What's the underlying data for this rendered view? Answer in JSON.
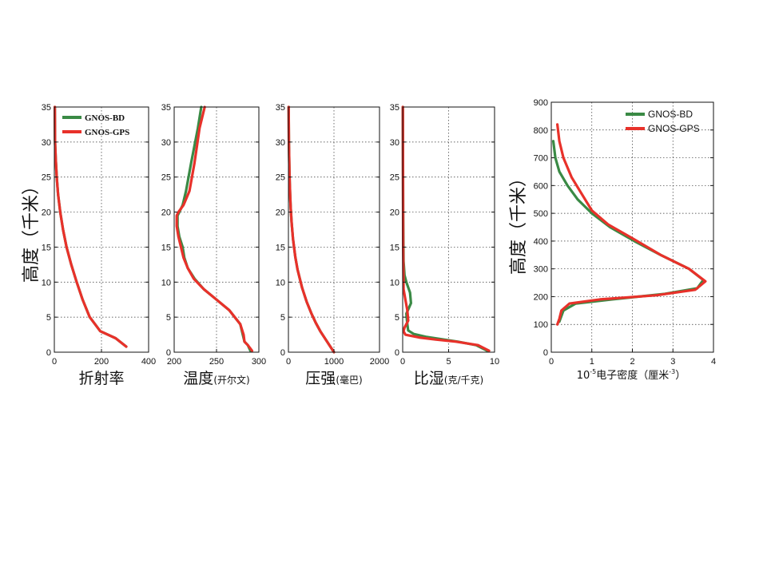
{
  "colors": {
    "GNOS-BD": "#3a8a45",
    "GNOS-GPS": "#e8312a"
  },
  "left_ylabel": {
    "main": "高度",
    "paren_open": "（",
    "unit": "千米",
    "paren_close": "）"
  },
  "right_ylabel": {
    "main": "高度",
    "paren_open": "（",
    "unit": "千米",
    "paren_close": "）"
  },
  "chart_data": [
    {
      "id": "refractivity",
      "type": "line",
      "xlabel": "折射率",
      "xlabel_unit": "",
      "xlim": [
        0,
        400
      ],
      "ylim": [
        0,
        35
      ],
      "xticks": [
        0,
        200,
        400
      ],
      "yticks": [
        0,
        5,
        10,
        15,
        20,
        25,
        30,
        35
      ],
      "grid": true,
      "legend": {
        "position": "top-left",
        "entries": [
          "GNOS-BD",
          "GNOS-GPS"
        ]
      },
      "series": [
        {
          "name": "GNOS-BD",
          "x": [
            305,
            260,
            195,
            150,
            120,
            95,
            72,
            52,
            37,
            25,
            16,
            10,
            6,
            3,
            2
          ],
          "y": [
            0.8,
            2,
            3,
            5,
            7.5,
            10,
            12.5,
            15,
            17.5,
            20,
            22.5,
            25,
            27.5,
            30,
            35
          ]
        },
        {
          "name": "GNOS-GPS",
          "x": [
            305,
            260,
            195,
            150,
            120,
            95,
            72,
            52,
            37,
            25,
            16,
            10,
            6,
            3,
            2
          ],
          "y": [
            0.8,
            2,
            3,
            5,
            7.5,
            10,
            12.5,
            15,
            17.5,
            20,
            22.5,
            25,
            27.5,
            30,
            35
          ]
        }
      ]
    },
    {
      "id": "temperature",
      "type": "line",
      "xlabel": "温度",
      "xlabel_unit": "(开尔文)",
      "xlim": [
        200,
        300
      ],
      "ylim": [
        0,
        35
      ],
      "xticks": [
        200,
        250,
        300
      ],
      "yticks": [
        0,
        5,
        10,
        15,
        20,
        25,
        30,
        35
      ],
      "grid": true,
      "series": [
        {
          "name": "GNOS-BD",
          "x": [
            290,
            287,
            283,
            281,
            278,
            265,
            250,
            235,
            224,
            216,
            212,
            210,
            206,
            204,
            204,
            206,
            210,
            214,
            220,
            228,
            232
          ],
          "y": [
            0.2,
            1,
            1.5,
            2.5,
            4,
            6,
            7.5,
            9,
            10.5,
            12,
            13.5,
            15,
            16.5,
            18,
            19.5,
            20,
            21,
            23,
            27,
            32,
            35
          ]
        },
        {
          "name": "GNOS-GPS",
          "x": [
            292,
            287,
            283,
            282,
            278,
            265,
            250,
            235,
            223,
            216,
            211,
            208,
            205,
            203,
            203,
            205,
            211,
            218,
            224,
            230,
            236
          ],
          "y": [
            0.2,
            1,
            1.5,
            2.5,
            4,
            6,
            7.5,
            9,
            10.5,
            12,
            13.5,
            15,
            16.5,
            18,
            19.5,
            20,
            21,
            23,
            27,
            32,
            35
          ]
        }
      ]
    },
    {
      "id": "pressure",
      "type": "line",
      "xlabel": "压强",
      "xlabel_unit": "(毫巴)",
      "xlim": [
        0,
        2000
      ],
      "ylim": [
        0,
        35
      ],
      "xticks": [
        0,
        1000,
        2000
      ],
      "yticks": [
        0,
        5,
        10,
        15,
        20,
        25,
        30,
        35
      ],
      "grid": true,
      "series": [
        {
          "name": "GNOS-BD",
          "x": [
            1000,
            900,
            800,
            700,
            600,
            500,
            400,
            300,
            200,
            150,
            100,
            70,
            50,
            40,
            25,
            10,
            6
          ],
          "y": [
            0,
            1,
            2,
            3,
            4.2,
            5.6,
            7.2,
            9.2,
            11.8,
            13.6,
            16.2,
            18.5,
            20.5,
            22,
            25,
            30,
            35
          ]
        },
        {
          "name": "GNOS-GPS",
          "x": [
            1000,
            900,
            800,
            700,
            600,
            500,
            400,
            300,
            200,
            150,
            100,
            70,
            50,
            40,
            25,
            10,
            6
          ],
          "y": [
            0,
            1,
            2,
            3,
            4.2,
            5.6,
            7.2,
            9.2,
            11.8,
            13.6,
            16.2,
            18.5,
            20.5,
            22,
            25,
            30,
            35
          ]
        }
      ]
    },
    {
      "id": "humidity",
      "type": "line",
      "xlabel": "比湿",
      "xlabel_unit": "(克/千克)",
      "xlim": [
        0,
        10
      ],
      "ylim": [
        0,
        35
      ],
      "xticks": [
        0,
        5,
        10
      ],
      "yticks": [
        0,
        5,
        10,
        15,
        20,
        25,
        30,
        35
      ],
      "grid": true,
      "series": [
        {
          "name": "GNOS-BD",
          "x": [
            9.2,
            8,
            6,
            4,
            2.5,
            1.2,
            0.6,
            0.5,
            0.4,
            0.9,
            0.8,
            0.4,
            0.2,
            0.1,
            0.05,
            0.02
          ],
          "y": [
            0.2,
            1,
            1.5,
            1.9,
            2.2,
            2.6,
            3.1,
            4,
            5.5,
            7,
            8.5,
            10,
            11,
            13,
            20,
            35
          ]
        },
        {
          "name": "GNOS-GPS",
          "x": [
            9.4,
            8.2,
            5.8,
            3.6,
            1.8,
            0.3,
            0.1,
            0.2,
            0.6,
            0.5,
            0.3,
            0.1,
            0.05,
            0.02
          ],
          "y": [
            0.2,
            1,
            1.5,
            1.8,
            2.1,
            2.5,
            3,
            3.5,
            4.5,
            6,
            7.5,
            9,
            15,
            35
          ]
        }
      ]
    },
    {
      "id": "electron_density",
      "type": "line",
      "xlabel_base": "10",
      "xlabel_exp": "-5",
      "xlabel_mid": "电子密度（厘米",
      "xlabel_unit_exp": "-3",
      "xlabel_end": "）",
      "xlim": [
        0,
        4
      ],
      "ylim": [
        0,
        900
      ],
      "xticks": [
        0,
        1,
        2,
        3,
        4
      ],
      "yticks": [
        0,
        100,
        200,
        300,
        400,
        500,
        600,
        700,
        800,
        900
      ],
      "grid": true,
      "legend": {
        "position": "top-right",
        "entries": [
          "GNOS-BD",
          "GNOS-GPS"
        ]
      },
      "series": [
        {
          "name": "GNOS-BD",
          "x": [
            0.05,
            0.1,
            0.2,
            0.4,
            0.65,
            1.0,
            1.45,
            2.05,
            2.7,
            3.4,
            3.75,
            3.6,
            2.8,
            1.5,
            0.6,
            0.3,
            0.2
          ],
          "y": [
            760,
            700,
            650,
            600,
            550,
            500,
            450,
            400,
            350,
            300,
            260,
            230,
            210,
            190,
            175,
            150,
            110
          ]
        },
        {
          "name": "GNOS-GPS",
          "x": [
            0.15,
            0.2,
            0.3,
            0.5,
            0.75,
            1.0,
            1.4,
            2.0,
            2.7,
            3.4,
            3.8,
            3.55,
            2.6,
            1.2,
            0.45,
            0.25,
            0.2,
            0.15
          ],
          "y": [
            820,
            760,
            700,
            630,
            570,
            510,
            460,
            410,
            350,
            300,
            255,
            225,
            205,
            190,
            175,
            150,
            120,
            100
          ]
        }
      ]
    }
  ]
}
